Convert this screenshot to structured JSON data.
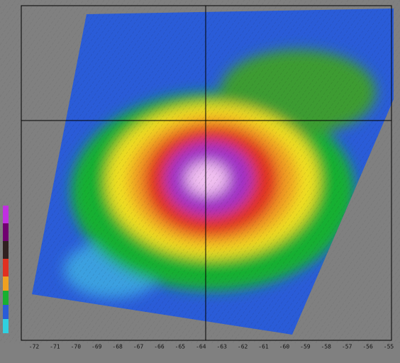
{
  "axis": {
    "x_labels": [
      "-72",
      "-71",
      "-70",
      "-69",
      "-68",
      "-67",
      "-66",
      "-65",
      "-64",
      "-63",
      "-62",
      "-61",
      "-60",
      "-59",
      "-58",
      "-57",
      "-56",
      "-55"
    ]
  }
}
